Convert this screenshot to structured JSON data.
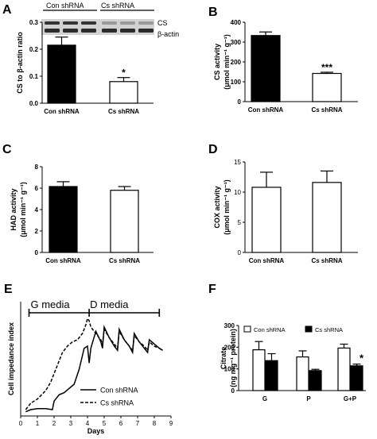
{
  "chart_data": [
    {
      "panel": "A",
      "type": "bar",
      "categories": [
        "Con shRNA",
        "Cs shRNA"
      ],
      "values": [
        0.215,
        0.08
      ],
      "errors": [
        0.03,
        0.015
      ],
      "fills": [
        "#000000",
        "#ffffff"
      ],
      "annotations": [
        "",
        "*"
      ],
      "ylabel": "CS to β-actin ratio",
      "ylim": [
        0,
        0.3
      ],
      "yticks": [
        "0.0",
        "0.1",
        "0.2",
        "0.3"
      ],
      "blot": {
        "groups": [
          "Con shRNA",
          "Cs shRNA"
        ],
        "bands": [
          "CS",
          "β-actin"
        ]
      }
    },
    {
      "panel": "B",
      "type": "bar",
      "categories": [
        "Con shRNA",
        "Cs shRNA"
      ],
      "values": [
        333,
        142
      ],
      "errors": [
        18,
        6
      ],
      "fills": [
        "#000000",
        "#ffffff"
      ],
      "annotations": [
        "",
        "***"
      ],
      "ylabel": "CS activity",
      "yunit": "(μmol min⁻¹ g⁻¹)",
      "ylim": [
        0,
        400
      ],
      "yticks": [
        "0",
        "100",
        "200",
        "300",
        "400"
      ]
    },
    {
      "panel": "C",
      "type": "bar",
      "categories": [
        "Con shRNA",
        "Cs shRNA"
      ],
      "values": [
        6.15,
        5.8
      ],
      "errors": [
        0.45,
        0.35
      ],
      "fills": [
        "#000000",
        "#ffffff"
      ],
      "annotations": [
        "",
        ""
      ],
      "ylabel": "HAD activity",
      "yunit": "(μmol min⁻¹ g⁻¹)",
      "ylim": [
        0,
        8
      ],
      "yticks": [
        "0",
        "2",
        "4",
        "6",
        "8"
      ]
    },
    {
      "panel": "D",
      "type": "bar",
      "categories": [
        "Con shRNA",
        "Cs shRNA"
      ],
      "values": [
        10.8,
        11.6
      ],
      "errors": [
        2.5,
        1.9
      ],
      "fills": [
        "#ffffff",
        "#ffffff"
      ],
      "annotations": [
        "",
        ""
      ],
      "ylabel": "COX activity",
      "yunit": "(μmol min⁻¹ g⁻¹)",
      "ylim": [
        0,
        15
      ],
      "yticks": [
        "0",
        "5",
        "10",
        "15"
      ]
    },
    {
      "panel": "E",
      "type": "line",
      "xlabel": "Days",
      "ylabel": "Cell impedance index",
      "xlim": [
        0,
        9
      ],
      "xticks": [
        "0",
        "1",
        "2",
        "3",
        "4",
        "5",
        "6",
        "7",
        "8",
        "9"
      ],
      "phases": [
        "G media",
        "D media"
      ],
      "phase_bounds": [
        0.5,
        4.1,
        8.3
      ],
      "series": [
        {
          "name": "Con shRNA",
          "dash": false,
          "x": [
            0.3,
            0.6,
            1.0,
            1.5,
            1.9,
            2.0,
            2.3,
            2.6,
            2.9,
            3.2,
            3.5,
            3.8,
            4.0,
            4.1,
            4.2,
            4.5,
            4.8,
            4.9,
            5.0,
            5.3,
            5.6,
            5.8,
            5.9,
            6.2,
            6.5,
            6.7,
            6.8,
            7.1,
            7.4,
            7.6,
            7.7,
            8.0,
            8.3,
            8.5
          ],
          "y": [
            0.2,
            0.3,
            0.35,
            0.35,
            0.3,
            0.7,
            1.0,
            1.1,
            1.3,
            1.5,
            2.2,
            3.2,
            3.3,
            2.5,
            3.2,
            4.0,
            3.5,
            3.2,
            4.2,
            3.7,
            3.3,
            3.1,
            4.1,
            3.6,
            3.3,
            3.0,
            3.9,
            3.5,
            3.2,
            3.0,
            3.6,
            3.4,
            3.2,
            3.1
          ]
        },
        {
          "name": "Cs shRNA",
          "dash": true,
          "x": [
            0.3,
            0.6,
            1.0,
            1.5,
            1.8,
            2.1,
            2.5,
            2.8,
            3.1,
            3.4,
            3.7,
            3.9,
            4.0,
            4.1,
            4.2,
            4.5,
            4.8,
            4.9,
            5.0,
            5.3,
            5.6,
            5.8,
            5.9,
            6.2,
            6.5,
            6.7,
            6.8,
            7.1,
            7.4,
            7.6,
            7.7,
            8.0,
            8.3,
            8.5
          ],
          "y": [
            0.3,
            0.6,
            0.8,
            1.2,
            1.6,
            2.2,
            3.0,
            3.3,
            3.5,
            3.6,
            3.9,
            4.3,
            4.6,
            4.5,
            4.2,
            3.9,
            3.6,
            3.4,
            4.1,
            3.7,
            3.4,
            3.2,
            4.0,
            3.6,
            3.3,
            3.1,
            3.8,
            3.5,
            3.3,
            3.1,
            3.5,
            3.3,
            3.2,
            3.1
          ]
        }
      ]
    },
    {
      "panel": "F",
      "type": "bar",
      "categories": [
        "G",
        "P",
        "G+P"
      ],
      "ylabel": "Citrate",
      "yunit": "(ng mg⁻¹ protein)",
      "ylim": [
        0,
        300
      ],
      "yticks": [
        "0",
        "100",
        "200",
        "300"
      ],
      "series": [
        {
          "name": "Con shRNA",
          "fill": "#ffffff",
          "values": [
            188,
            155,
            196
          ],
          "errors": [
            38,
            28,
            18
          ]
        },
        {
          "name": "Cs shRNA",
          "fill": "#000000",
          "values": [
            138,
            92,
            114
          ],
          "errors": [
            32,
            6,
            8
          ]
        }
      ],
      "annotations": [
        {
          "category": "G+P",
          "series": "Cs shRNA",
          "text": "*"
        }
      ]
    }
  ]
}
